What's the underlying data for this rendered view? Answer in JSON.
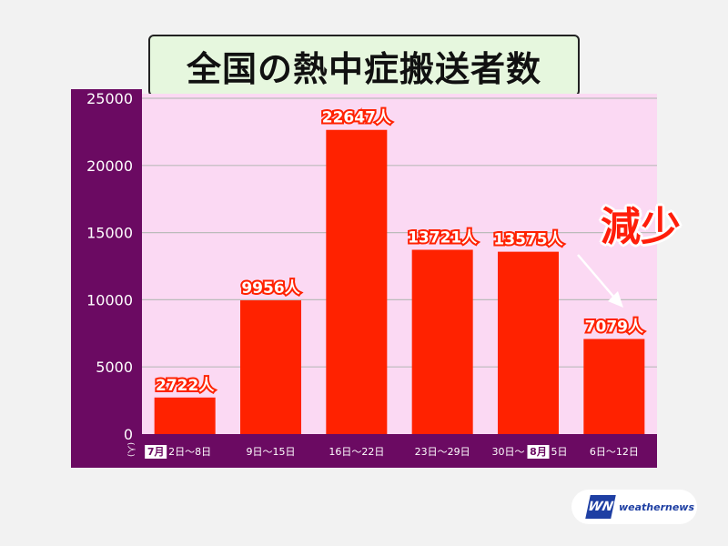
{
  "title": "全国の熱中症搬送者数",
  "callout_label": "減少",
  "brand": {
    "mark": "WN",
    "name": "weathernews"
  },
  "colors": {
    "bar": "#ff2200",
    "plot_bg": "#fbd9f3",
    "axis_bg": "#6b0a62",
    "grid": "#bbbbbb"
  },
  "chart_data": {
    "type": "bar",
    "title": "全国の熱中症搬送者数",
    "ylabel": "(人)",
    "ylim": [
      0,
      25000
    ],
    "yticks": [
      "0",
      "5000",
      "10000",
      "15000",
      "20000",
      "25000"
    ],
    "grid": true,
    "categories": [
      "7月2日〜8日",
      "9日〜15日",
      "16日〜22日",
      "23日〜29日",
      "30日〜8月5日",
      "6日〜12日"
    ],
    "category_labels": [
      {
        "month": "7月",
        "text": "2日〜8日"
      },
      {
        "text": "9日〜15日"
      },
      {
        "text": "16日〜22日"
      },
      {
        "text": "23日〜29日"
      },
      {
        "text": "30日〜",
        "month": "8月",
        "text2": "5日"
      },
      {
        "text": "6日〜12日"
      }
    ],
    "values": [
      2722,
      9956,
      22647,
      13721,
      13575,
      7079
    ],
    "value_labels": [
      "2722人",
      "9956人",
      "22647人",
      "13721人",
      "13575人",
      "7079人"
    ],
    "annotations": [
      "減少"
    ]
  }
}
